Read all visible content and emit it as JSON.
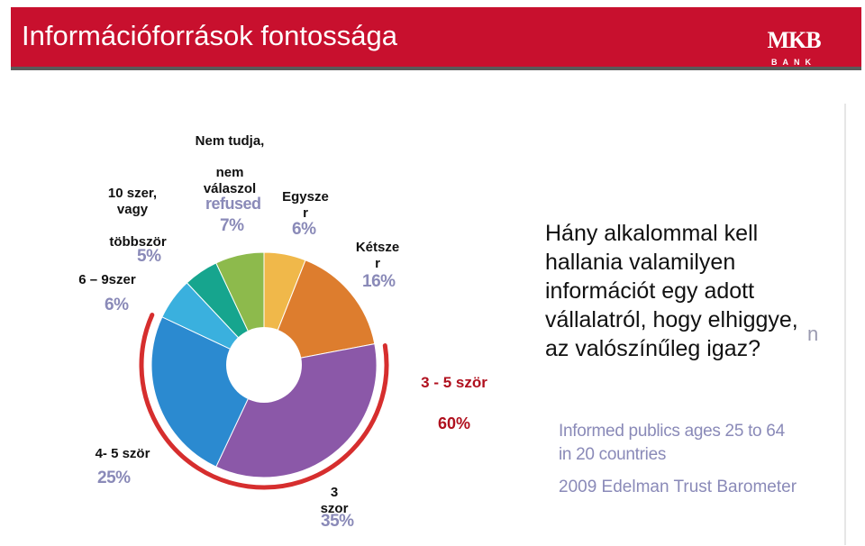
{
  "header": {
    "title": "Információforrások fontossága",
    "logo_main": "MKB",
    "logo_sub": "BANK"
  },
  "labels": {
    "nem_tudja": "Nem tudja,",
    "nem_valaszol": "nem\nválaszol",
    "refused": "refused",
    "refused_pct": "7%",
    "egyszer": "Egysze\nr",
    "egyszer_pct": "6%",
    "ketszer": "Kétsze\nr",
    "ketszer_pct": "16%",
    "tizszer": "10 szer,\nvagy",
    "tobbszor": "többször",
    "tobbszor_pct": "5%",
    "hat_kilenc": "6 – 9szer",
    "hat_kilenc_pct": "6%",
    "negy_ot": "4- 5 ször",
    "negy_ot_pct": "25%",
    "harom": "3\nszor",
    "harom_pct": "35%",
    "harom_ot": "3 - 5 ször",
    "harom_ot_pct": "60%"
  },
  "question": "Hány alkalommal kell hallania valamilyen információt egy adott vállalatról, hogy elhiggye, az valószínűleg igaz?",
  "source": {
    "line1": "Informed publics ages 25 to 64",
    "line2": "in 20 countries",
    "line3": "2009 Edelman Trust Barometer"
  },
  "stray_text": "n",
  "chart_data": {
    "type": "pie",
    "donut": true,
    "series": [
      {
        "name": "Egyszer",
        "value": 6,
        "color": "#f0b84a"
      },
      {
        "name": "Kétszer",
        "value": 16,
        "color": "#dd7d2e"
      },
      {
        "name": "3 szor",
        "value": 35,
        "color": "#8b58a8"
      },
      {
        "name": "4- 5 ször",
        "value": 25,
        "color": "#2b8ad0"
      },
      {
        "name": "6 – 9szer",
        "value": 6,
        "color": "#3ab0de"
      },
      {
        "name": "10 szer, vagy többször",
        "value": 5,
        "color": "#16a58e"
      },
      {
        "name": "Nem tudja, nem válaszol / refused",
        "value": 7,
        "color": "#8dba4c"
      }
    ],
    "highlight": {
      "label": "3 - 5 ször",
      "value": 60,
      "color": "#d62e2e"
    }
  }
}
